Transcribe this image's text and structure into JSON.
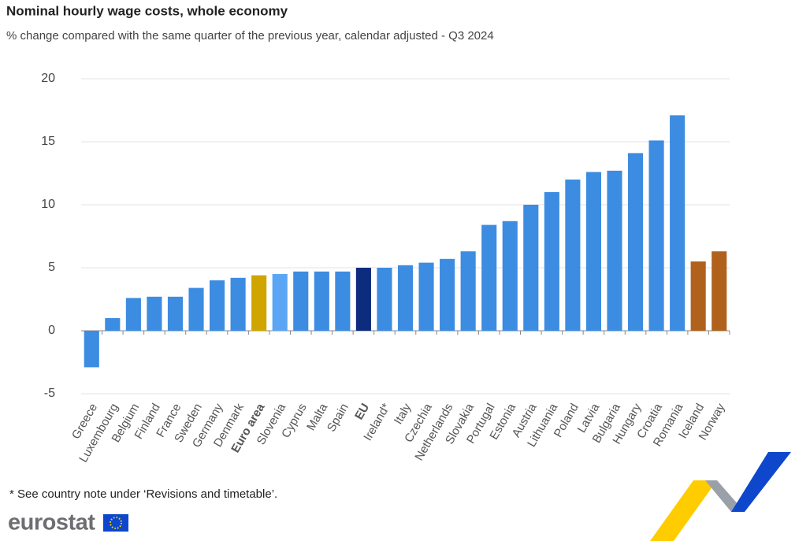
{
  "chart_data": {
    "type": "bar",
    "title": "Nominal hourly wage costs, whole economy",
    "subtitle": "% change compared with the same quarter of the previous year, calendar adjusted - Q3 2024",
    "categories": [
      "Greece",
      "Luxembourg",
      "Belgium",
      "Finland",
      "France",
      "Sweden",
      "Germany",
      "Denmark",
      "Euro area",
      "Slovenia",
      "Cyprus",
      "Malta",
      "Spain",
      "EU",
      "Ireland*",
      "Italy",
      "Czechia",
      "Netherlands",
      "Slovakia",
      "Portugal",
      "Estonia",
      "Austria",
      "Lithuania",
      "Poland",
      "Latvia",
      "Bulgaria",
      "Hungary",
      "Croatia",
      "Romania",
      "Iceland",
      "Norway"
    ],
    "values": [
      -2.9,
      1.0,
      2.6,
      2.7,
      2.7,
      3.4,
      4.0,
      4.2,
      4.4,
      4.5,
      4.7,
      4.7,
      4.7,
      5.0,
      5.0,
      5.2,
      5.4,
      5.7,
      6.3,
      8.4,
      8.7,
      10.0,
      11.0,
      12.0,
      12.6,
      12.7,
      14.1,
      15.1,
      17.1,
      5.5,
      6.3
    ],
    "colors": [
      "#3c8ce1",
      "#3c8ce1",
      "#3c8ce1",
      "#3c8ce1",
      "#3c8ce1",
      "#3c8ce1",
      "#3c8ce1",
      "#3c8ce1",
      "#d1a500",
      "#5ba6f4",
      "#3c8ce1",
      "#3c8ce1",
      "#3c8ce1",
      "#0e2c7e",
      "#3c8ce1",
      "#3c8ce1",
      "#3c8ce1",
      "#3c8ce1",
      "#3c8ce1",
      "#3c8ce1",
      "#3c8ce1",
      "#3c8ce1",
      "#3c8ce1",
      "#3c8ce1",
      "#3c8ce1",
      "#3c8ce1",
      "#3c8ce1",
      "#3c8ce1",
      "#3c8ce1",
      "#b0621c",
      "#b0621c"
    ],
    "bold": [
      false,
      false,
      false,
      false,
      false,
      false,
      false,
      false,
      true,
      false,
      false,
      false,
      false,
      true,
      false,
      false,
      false,
      false,
      false,
      false,
      false,
      false,
      false,
      false,
      false,
      false,
      false,
      false,
      false,
      false,
      false
    ],
    "ylim": [
      -5,
      20
    ],
    "yticks": [
      -5,
      0,
      5,
      10,
      15,
      20
    ],
    "grid": true
  },
  "footnote": "* See country note under ‘Revisions and timetable’.",
  "logo": "eurostat"
}
